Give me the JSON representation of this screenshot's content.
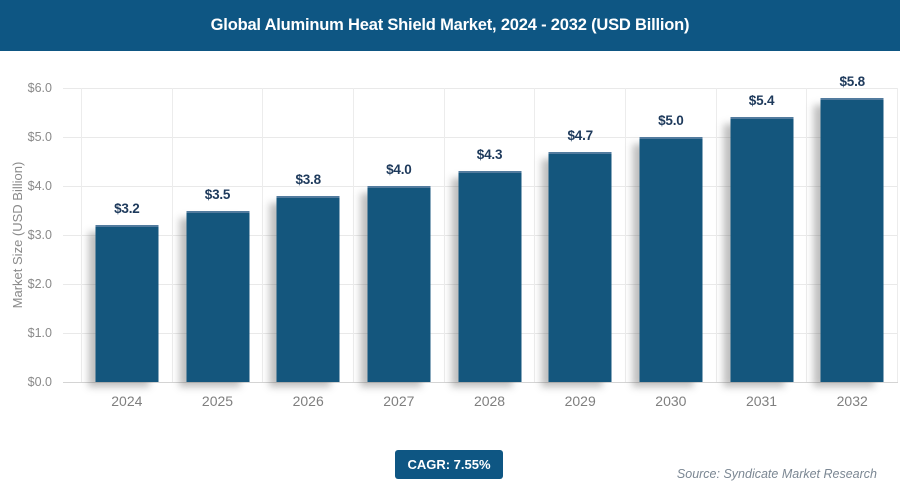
{
  "header": {
    "title": "Global Aluminum Heat Shield Market, 2024 - 2032 (USD Billion)"
  },
  "chart_data": {
    "type": "bar",
    "title": "Global Aluminum Heat Shield Market, 2024 - 2032 (USD Billion)",
    "categories": [
      "2024",
      "2025",
      "2026",
      "2027",
      "2028",
      "2029",
      "2030",
      "2031",
      "2032"
    ],
    "values": [
      3.2,
      3.5,
      3.8,
      4.0,
      4.3,
      4.7,
      5.0,
      5.4,
      5.8
    ],
    "bar_labels": [
      "$3.2",
      "$3.5",
      "$3.8",
      "$4.0",
      "$4.3",
      "$4.7",
      "$5.0",
      "$5.4",
      "$5.8"
    ],
    "xlabel": "",
    "ylabel": "Market Size (USD Billion)",
    "ylim": [
      0,
      6
    ],
    "y_ticks": [
      "$0.0",
      "$1.0",
      "$2.0",
      "$3.0",
      "$4.0",
      "$5.0",
      "$6.0"
    ],
    "grid": true,
    "legend": false,
    "bar_color": "#14567d",
    "label_color": "#1e3a5c"
  },
  "footer": {
    "cagr_label": "CAGR: 7.55%",
    "source": "Source: Syndicate Market Research"
  },
  "colors": {
    "brand_blue": "#0e5683",
    "bar_blue": "#14567d",
    "data_label_navy": "#1e3a5c",
    "axis_gray": "#8a8a8a",
    "gridline_gray": "#e9e9e9",
    "source_gray": "#7b8793"
  }
}
